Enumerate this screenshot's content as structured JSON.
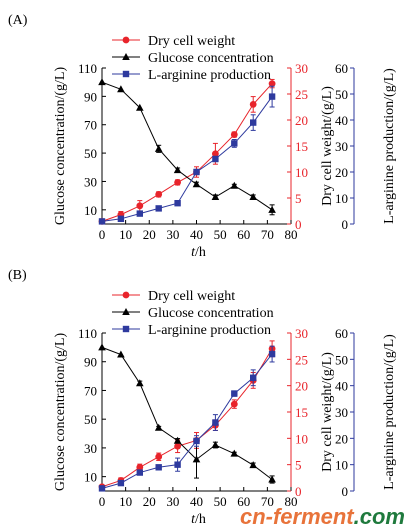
{
  "colors": {
    "dcw": "#e8242b",
    "glucose": "#000000",
    "arginine": "#2e3a9e",
    "ax_red": "#e8242b",
    "ax_blue": "#2e3a9e"
  },
  "watermark": {
    "brand_left": "cn-ferment",
    "brand_right": ".com"
  },
  "chart_data": [
    {
      "type": "line",
      "panel": "(A)",
      "xlabel_italic": "t",
      "xlabel_unit": "/h",
      "xlim": [
        0,
        80
      ],
      "xticks": [
        0,
        10,
        20,
        30,
        40,
        50,
        60,
        70,
        80
      ],
      "axes": {
        "left": {
          "label": "Glucose concentration/(g/L)",
          "lim": [
            0,
            110
          ],
          "ticks": [
            10,
            30,
            50,
            70,
            90,
            110
          ]
        },
        "right1": {
          "label": "Dry cell weight/(g/L)",
          "lim": [
            0,
            30
          ],
          "ticks": [
            0,
            5,
            10,
            15,
            20,
            25,
            30
          ]
        },
        "right2": {
          "label": "L-arginine production/(g/L)",
          "lim": [
            0,
            60
          ],
          "ticks": [
            0,
            10,
            20,
            30,
            40,
            50,
            60
          ]
        }
      },
      "legend_position": "top-left",
      "series": [
        {
          "name": "Dry cell weight",
          "axis": "right1",
          "marker": "circle",
          "x": [
            0,
            8,
            16,
            24,
            32,
            40,
            48,
            56,
            64,
            72
          ],
          "y": [
            0.5,
            1.8,
            3.5,
            5.7,
            8.0,
            10.0,
            13.5,
            17.2,
            23.0,
            27.0
          ],
          "err": [
            0.2,
            0.6,
            1.0,
            0.5,
            0.5,
            1.0,
            2.0,
            0.5,
            1.5,
            0.8
          ]
        },
        {
          "name": "Glucose concentration",
          "axis": "left",
          "marker": "triangle",
          "x": [
            0,
            8,
            16,
            24,
            32,
            40,
            48,
            56,
            64,
            72
          ],
          "y": [
            100,
            95,
            82,
            53,
            38,
            28,
            19,
            27,
            19,
            10
          ],
          "err": [
            0,
            0,
            0,
            2.5,
            1.5,
            1.5,
            1.5,
            1.0,
            1.5,
            3.5
          ]
        },
        {
          "name": "L-arginine production",
          "axis": "right2",
          "marker": "square",
          "x": [
            0,
            8,
            16,
            24,
            32,
            40,
            48,
            56,
            64,
            72
          ],
          "y": [
            1,
            2,
            4,
            6,
            8,
            20,
            25,
            31,
            39,
            49
          ],
          "err": [
            0,
            0.4,
            0.4,
            0.4,
            0.6,
            1.0,
            1.0,
            1.5,
            3.0,
            4.0
          ]
        }
      ]
    },
    {
      "type": "line",
      "panel": "(B)",
      "xlabel_italic": "t",
      "xlabel_unit": "/h",
      "xlim": [
        0,
        80
      ],
      "xticks": [
        0,
        10,
        20,
        30,
        40,
        50,
        60,
        70,
        80
      ],
      "axes": {
        "left": {
          "label": "Glucose concentration/(g/L)",
          "lim": [
            0,
            110
          ],
          "ticks": [
            10,
            30,
            50,
            70,
            90,
            110
          ]
        },
        "right1": {
          "label": "Dry cell weight/(g/L)",
          "lim": [
            0,
            30
          ],
          "ticks": [
            0,
            5,
            10,
            15,
            20,
            25,
            30
          ]
        },
        "right2": {
          "label": "L-arginine production/(g/L)",
          "lim": [
            0,
            60
          ],
          "ticks": [
            0,
            10,
            20,
            30,
            40,
            50,
            60
          ]
        }
      },
      "legend_position": "top-left",
      "series": [
        {
          "name": "Dry cell weight",
          "axis": "right1",
          "marker": "circle",
          "x": [
            0,
            8,
            16,
            24,
            32,
            40,
            48,
            56,
            64,
            72
          ],
          "y": [
            0.8,
            2.0,
            4.5,
            6.5,
            8.5,
            9.6,
            12.5,
            16.5,
            21.0,
            27.0
          ],
          "err": [
            0.2,
            0.5,
            0.6,
            0.7,
            1.2,
            1.5,
            1.0,
            0.8,
            1.5,
            1.5
          ]
        },
        {
          "name": "Glucose concentration",
          "axis": "left",
          "marker": "triangle",
          "x": [
            0,
            8,
            16,
            24,
            32,
            40,
            48,
            56,
            64,
            72
          ],
          "y": [
            100,
            95,
            75,
            44,
            35,
            22,
            32,
            26,
            18,
            8
          ],
          "err": [
            0,
            0,
            1.5,
            1.0,
            1.5,
            13.0,
            2.0,
            1.0,
            1.5,
            2.5
          ]
        },
        {
          "name": "L-arginine production",
          "axis": "right2",
          "marker": "square",
          "x": [
            0,
            8,
            16,
            24,
            32,
            40,
            48,
            56,
            64,
            72
          ],
          "y": [
            1,
            3,
            7,
            9,
            10,
            19,
            26,
            37,
            43,
            52
          ],
          "err": [
            0,
            0.5,
            0.5,
            0.7,
            2.5,
            2.0,
            3.0,
            1.0,
            3.0,
            3.0
          ]
        }
      ]
    }
  ]
}
